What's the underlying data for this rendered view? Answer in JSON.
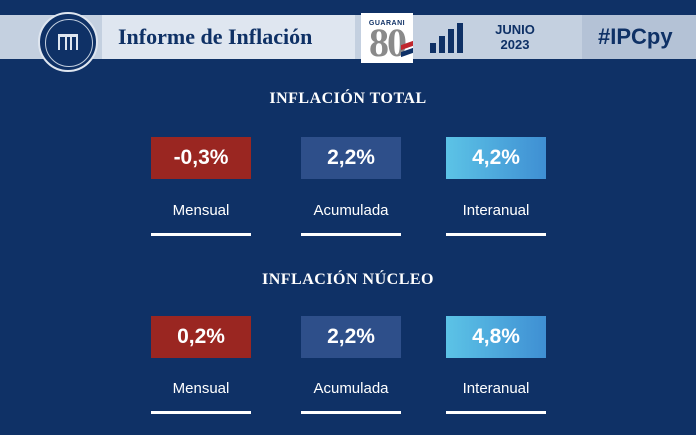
{
  "header": {
    "title": "Informe de Inflación",
    "logo_text": "GUARANI",
    "logo_number": "80",
    "month": "JUNIO",
    "year": "2023",
    "hashtag": "#IPCpy"
  },
  "colors": {
    "background": "#0f3166",
    "negative_box": "#9a2621",
    "mid_box": "#2e4f8a",
    "light_box": "#4aa9d9"
  },
  "sections": [
    {
      "title": "INFLACIÓN TOTAL",
      "cards": [
        {
          "value": "-0,3%",
          "label": "Mensual"
        },
        {
          "value": "2,2%",
          "label": "Acumulada"
        },
        {
          "value": "4,2%",
          "label": "Interanual"
        }
      ]
    },
    {
      "title": "INFLACIÓN NÚCLEO",
      "cards": [
        {
          "value": "0,2%",
          "label": "Mensual"
        },
        {
          "value": "2,2%",
          "label": "Acumulada"
        },
        {
          "value": "4,8%",
          "label": "Interanual"
        }
      ]
    }
  ]
}
